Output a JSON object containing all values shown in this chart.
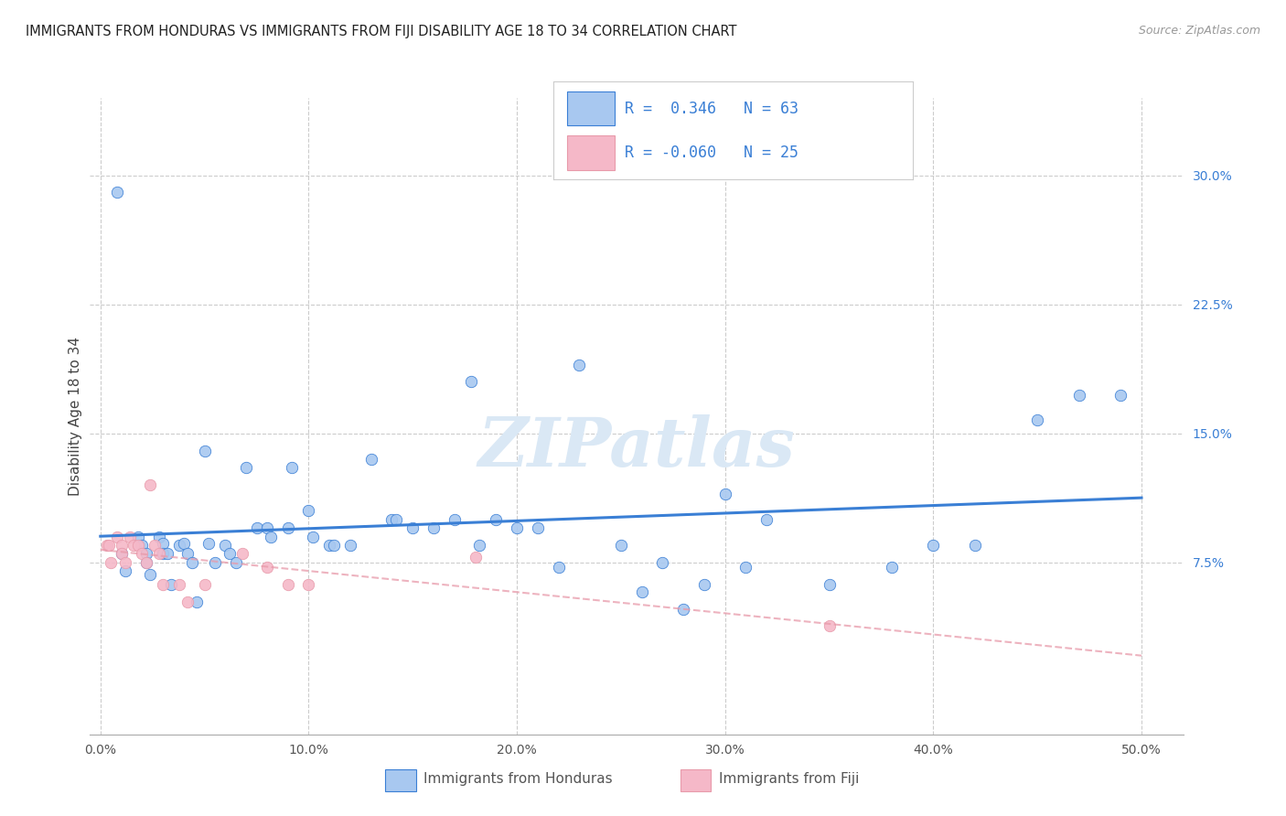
{
  "title": "IMMIGRANTS FROM HONDURAS VS IMMIGRANTS FROM FIJI DISABILITY AGE 18 TO 34 CORRELATION CHART",
  "source": "Source: ZipAtlas.com",
  "ylabel": "Disability Age 18 to 34",
  "ytick_labels": [
    "7.5%",
    "15.0%",
    "22.5%",
    "30.0%"
  ],
  "ytick_values": [
    0.075,
    0.15,
    0.225,
    0.3
  ],
  "xtick_positions": [
    0.0,
    0.1,
    0.2,
    0.3,
    0.4,
    0.5
  ],
  "xtick_labels": [
    "0.0%",
    "10.0%",
    "20.0%",
    "30.0%",
    "40.0%",
    "50.0%"
  ],
  "xlim": [
    -0.005,
    0.52
  ],
  "ylim": [
    -0.025,
    0.345
  ],
  "r_honduras": 0.346,
  "n_honduras": 63,
  "r_fiji": -0.06,
  "n_fiji": 25,
  "color_honduras": "#a8c8f0",
  "color_fiji": "#f5b8c8",
  "line_color_honduras": "#3a7fd5",
  "line_color_fiji": "#e89aaa",
  "watermark": "ZIPatlas",
  "watermark_color": "#dae8f5",
  "background_color": "#ffffff",
  "grid_color": "#cccccc",
  "honduras_x": [
    0.008,
    0.01,
    0.012,
    0.018,
    0.02,
    0.022,
    0.022,
    0.024,
    0.028,
    0.03,
    0.03,
    0.032,
    0.034,
    0.038,
    0.04,
    0.042,
    0.044,
    0.046,
    0.05,
    0.052,
    0.055,
    0.06,
    0.062,
    0.065,
    0.07,
    0.075,
    0.08,
    0.082,
    0.09,
    0.092,
    0.1,
    0.102,
    0.11,
    0.112,
    0.12,
    0.13,
    0.14,
    0.142,
    0.15,
    0.16,
    0.17,
    0.178,
    0.182,
    0.19,
    0.2,
    0.21,
    0.22,
    0.23,
    0.25,
    0.26,
    0.27,
    0.28,
    0.29,
    0.3,
    0.31,
    0.32,
    0.35,
    0.38,
    0.4,
    0.42,
    0.45,
    0.47,
    0.49
  ],
  "honduras_y": [
    0.29,
    0.08,
    0.07,
    0.09,
    0.085,
    0.08,
    0.075,
    0.068,
    0.09,
    0.086,
    0.08,
    0.08,
    0.062,
    0.085,
    0.086,
    0.08,
    0.075,
    0.052,
    0.14,
    0.086,
    0.075,
    0.085,
    0.08,
    0.075,
    0.13,
    0.095,
    0.095,
    0.09,
    0.095,
    0.13,
    0.105,
    0.09,
    0.085,
    0.085,
    0.085,
    0.135,
    0.1,
    0.1,
    0.095,
    0.095,
    0.1,
    0.18,
    0.085,
    0.1,
    0.095,
    0.095,
    0.072,
    0.19,
    0.085,
    0.058,
    0.075,
    0.048,
    0.062,
    0.115,
    0.072,
    0.1,
    0.062,
    0.072,
    0.085,
    0.085,
    0.158,
    0.172,
    0.172
  ],
  "fiji_x": [
    0.003,
    0.004,
    0.005,
    0.008,
    0.01,
    0.01,
    0.012,
    0.014,
    0.016,
    0.018,
    0.02,
    0.022,
    0.024,
    0.026,
    0.028,
    0.03,
    0.038,
    0.042,
    0.05,
    0.068,
    0.08,
    0.09,
    0.1,
    0.18,
    0.35
  ],
  "fiji_y": [
    0.085,
    0.085,
    0.075,
    0.09,
    0.085,
    0.08,
    0.075,
    0.09,
    0.085,
    0.085,
    0.08,
    0.075,
    0.12,
    0.085,
    0.08,
    0.062,
    0.062,
    0.052,
    0.062,
    0.08,
    0.072,
    0.062,
    0.062,
    0.078,
    0.038
  ]
}
